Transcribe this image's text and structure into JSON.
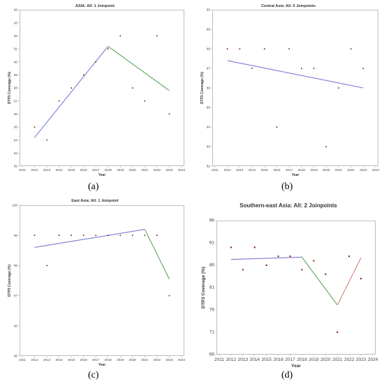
{
  "labels": [
    "(a)",
    "(b)",
    "(c)",
    "(d)"
  ],
  "chart_data": [
    {
      "type": "scatter",
      "title": "ASIA: All: 1 Joinpoint",
      "xlabel": "Year",
      "ylabel": "DTP3 Coverage (%)",
      "xlim": [
        2011,
        2024
      ],
      "ylim": [
        82,
        94
      ],
      "xticks": [
        "2011",
        "2012",
        "2013",
        "2014",
        "2015",
        "2016",
        "2017",
        "2018",
        "2019",
        "2020",
        "2021",
        "2022",
        "2023",
        "2024"
      ],
      "yticks": [
        "82",
        "83",
        "84",
        "85",
        "86",
        "87",
        "88",
        "89",
        "90",
        "91",
        "92",
        "93",
        "94"
      ],
      "points": {
        "x": [
          2012,
          2013,
          2014,
          2015,
          2016,
          2017,
          2018,
          2019,
          2020,
          2021,
          2022,
          2023
        ],
        "y": [
          85,
          84,
          87,
          88,
          89,
          90,
          91,
          92,
          88,
          87,
          92,
          86
        ]
      },
      "segments": [
        {
          "x": [
            2012,
            2018
          ],
          "y": [
            84.2,
            91.2
          ],
          "color": "#7b7bd6"
        },
        {
          "x": [
            2018,
            2023
          ],
          "y": [
            91.2,
            87.8
          ],
          "color": "#5ea35e"
        }
      ]
    },
    {
      "type": "scatter",
      "title": "Central Asia: All: 0 Joinpoints",
      "xlabel": "Year",
      "ylabel": "DTP3 Coverage (%)",
      "xlim": [
        2011,
        2024
      ],
      "ylim": [
        82,
        90
      ],
      "xticks": [
        "2011",
        "2012",
        "2013",
        "2014",
        "2015",
        "2016",
        "2017",
        "2018",
        "2019",
        "2020",
        "2021",
        "2022",
        "2023",
        "2024"
      ],
      "yticks": [
        "82",
        "83",
        "84",
        "85",
        "86",
        "87",
        "88",
        "89",
        "90"
      ],
      "points": {
        "x": [
          2012,
          2013,
          2014,
          2015,
          2016,
          2017,
          2018,
          2019,
          2020,
          2021,
          2022,
          2023
        ],
        "y": [
          88,
          88,
          87,
          88,
          84,
          88,
          87,
          87,
          83,
          86,
          88,
          87
        ]
      },
      "segments": [
        {
          "x": [
            2012,
            2023
          ],
          "y": [
            87.4,
            86.0
          ],
          "color": "#7b7bd6"
        }
      ]
    },
    {
      "type": "scatter",
      "title": "East Asia: All: 1 Joinpoint",
      "xlabel": "Year",
      "ylabel": "DTP3 Coverage (%)",
      "xlim": [
        2011,
        2024
      ],
      "ylim": [
        95,
        100
      ],
      "xticks": [
        "2011",
        "2012",
        "2013",
        "2014",
        "2015",
        "2016",
        "2017",
        "2018",
        "2019",
        "2020",
        "2021",
        "2022",
        "2023",
        "2024"
      ],
      "yticks": [
        "95",
        "96",
        "97",
        "98",
        "99",
        "100"
      ],
      "points": {
        "x": [
          2012,
          2013,
          2014,
          2015,
          2016,
          2017,
          2018,
          2019,
          2020,
          2021,
          2022,
          2023
        ],
        "y": [
          99,
          98,
          99,
          99,
          99,
          99,
          99,
          99,
          99,
          99,
          99,
          97
        ]
      },
      "segments": [
        {
          "x": [
            2012,
            2021
          ],
          "y": [
            98.6,
            99.2
          ],
          "color": "#7b7bd6"
        },
        {
          "x": [
            2021,
            2023
          ],
          "y": [
            99.2,
            97.55
          ],
          "color": "#5ea35e"
        }
      ]
    },
    {
      "type": "scatter",
      "title": "Southern-east Asia: All: 2 Joinpoints",
      "xlabel": "Year",
      "ylabel": "DTP3 Coverage (%)",
      "xlim": [
        2011,
        2024
      ],
      "ylim": [
        66,
        96
      ],
      "xticks": [
        "2011",
        "2012",
        "2013",
        "2014",
        "2015",
        "2016",
        "2017",
        "2018",
        "2019",
        "2020",
        "2021",
        "2022",
        "2023",
        "2024"
      ],
      "yticks": [
        "66",
        "71",
        "76",
        "81",
        "86",
        "91",
        "96"
      ],
      "points": {
        "x": [
          2012,
          2013,
          2014,
          2015,
          2016,
          2017,
          2018,
          2019,
          2020,
          2021,
          2022,
          2023
        ],
        "y": [
          90,
          85,
          90,
          86,
          88,
          88,
          85,
          87,
          84,
          71,
          88,
          83
        ]
      },
      "segments": [
        {
          "x": [
            2012,
            2018
          ],
          "y": [
            87.3,
            87.8
          ],
          "color": "#7b7bd6"
        },
        {
          "x": [
            2018,
            2021
          ],
          "y": [
            87.8,
            77.1
          ],
          "color": "#5ea35e"
        },
        {
          "x": [
            2021,
            2023
          ],
          "y": [
            77.1,
            87.7
          ],
          "color": "#e07a7a"
        }
      ]
    }
  ]
}
